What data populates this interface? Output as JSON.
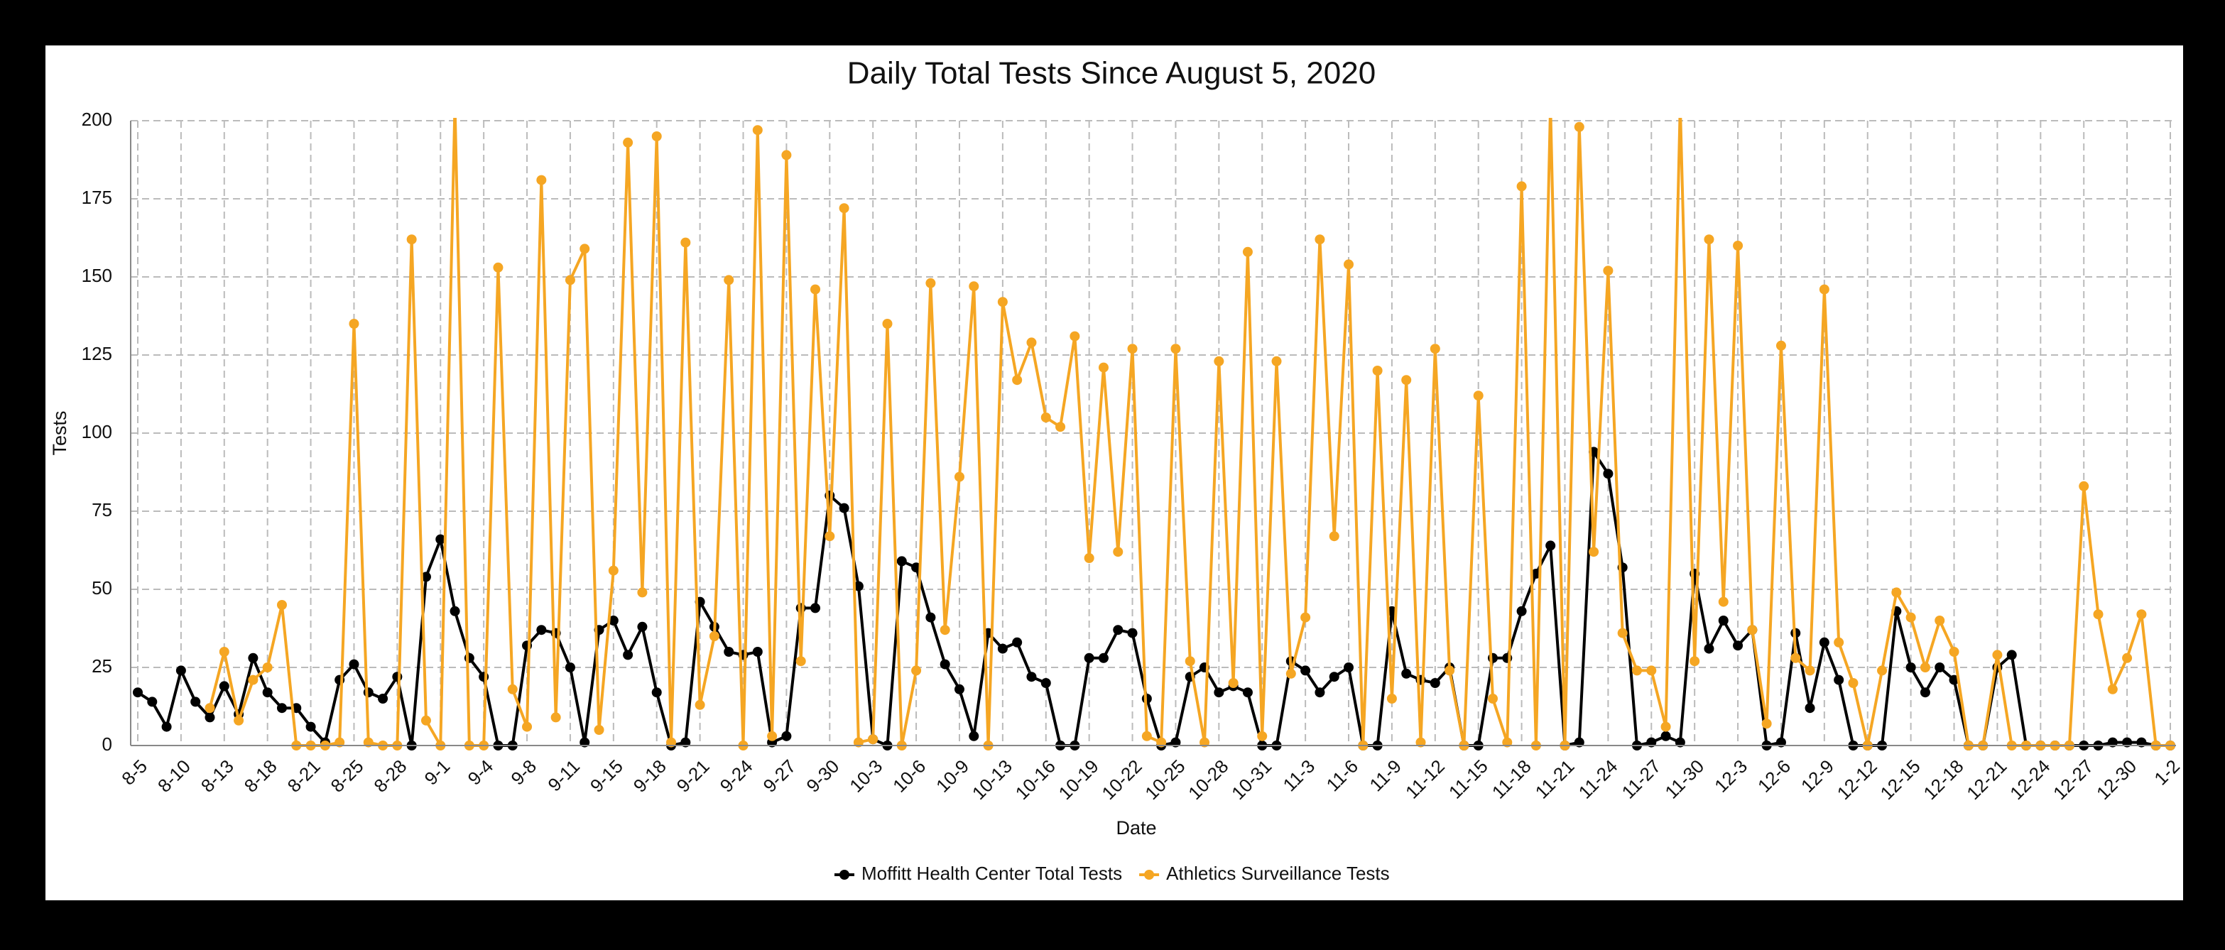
{
  "chart_data": {
    "type": "line",
    "title": "Daily Total Tests Since August 5, 2020",
    "x_label": "Date",
    "y_label": "Tests",
    "categories": [
      "8-5",
      null,
      null,
      "8-10",
      null,
      null,
      "8-13",
      null,
      null,
      "8-18",
      null,
      null,
      "8-21",
      null,
      null,
      "8-25",
      null,
      null,
      "8-28",
      null,
      null,
      "9-1",
      null,
      null,
      "9-4",
      null,
      null,
      "9-8",
      null,
      null,
      "9-11",
      null,
      null,
      "9-15",
      null,
      null,
      "9-18",
      null,
      null,
      "9-21",
      null,
      null,
      "9-24",
      null,
      null,
      "9-27",
      null,
      null,
      "9-30",
      null,
      null,
      "10-3",
      null,
      null,
      "10-6",
      null,
      null,
      "10-9",
      null,
      null,
      "10-13",
      null,
      null,
      "10-16",
      null,
      null,
      "10-19",
      null,
      null,
      "10-22",
      null,
      null,
      "10-25",
      null,
      null,
      "10-28",
      null,
      null,
      "10-31",
      null,
      null,
      "11-3",
      null,
      null,
      "11-6",
      null,
      null,
      "11-9",
      null,
      null,
      "11-12",
      null,
      null,
      "11-15",
      null,
      null,
      "11-18",
      null,
      null,
      "11-21",
      null,
      null,
      "11-24",
      null,
      null,
      "11-27",
      null,
      null,
      "11-30",
      null,
      null,
      "12-3",
      null,
      null,
      "12-6",
      null,
      null,
      "12-9",
      null,
      null,
      "12-12",
      null,
      null,
      "12-15",
      null,
      null,
      "12-18",
      null,
      null,
      "12-21",
      null,
      null,
      "12-24",
      null,
      null,
      "12-27",
      null,
      null,
      "12-30",
      null,
      null,
      "1-2"
    ],
    "series": [
      {
        "name": "Moffitt Health Center Total Tests",
        "color": "#000000",
        "values": [
          17,
          14,
          6,
          24,
          14,
          9,
          19,
          10,
          28,
          17,
          12,
          12,
          6,
          1,
          21,
          26,
          17,
          15,
          22,
          0,
          54,
          66,
          43,
          28,
          22,
          0,
          0,
          32,
          37,
          36,
          25,
          1,
          37,
          40,
          29,
          38,
          17,
          0,
          1,
          46,
          38,
          30,
          29,
          30,
          1,
          3,
          44,
          44,
          80,
          76,
          51,
          2,
          0,
          59,
          57,
          41,
          26,
          18,
          3,
          36,
          31,
          33,
          22,
          20,
          0,
          0,
          28,
          28,
          37,
          36,
          15,
          0,
          1,
          22,
          25,
          17,
          19,
          17,
          0,
          0,
          27,
          24,
          17,
          22,
          25,
          0,
          0,
          43,
          23,
          21,
          20,
          25,
          0,
          0,
          28,
          28,
          43,
          55,
          64,
          0,
          1,
          94,
          87,
          57,
          0,
          1,
          3,
          1,
          55,
          31,
          40,
          32,
          37,
          0,
          1,
          36,
          12,
          33,
          21,
          0,
          0,
          0,
          43,
          25,
          17,
          25,
          21,
          0,
          0,
          25,
          29,
          0,
          0,
          0,
          0,
          0,
          0,
          1,
          1,
          1,
          0,
          0
        ]
      },
      {
        "name": "Athletics Surveillance Tests",
        "color": "#f5a623",
        "values": [
          null,
          null,
          null,
          null,
          null,
          12,
          30,
          8,
          21,
          25,
          45,
          0,
          0,
          0,
          1,
          135,
          1,
          0,
          0,
          162,
          8,
          0,
          205,
          0,
          0,
          153,
          18,
          6,
          181,
          9,
          149,
          159,
          5,
          56,
          193,
          49,
          195,
          1,
          161,
          13,
          35,
          149,
          0,
          197,
          3,
          189,
          27,
          146,
          67,
          172,
          1,
          2,
          135,
          0,
          24,
          148,
          37,
          86,
          147,
          0,
          142,
          117,
          129,
          105,
          102,
          131,
          60,
          121,
          62,
          127,
          3,
          1,
          127,
          27,
          1,
          123,
          20,
          158,
          3,
          123,
          23,
          41,
          162,
          67,
          154,
          0,
          120,
          15,
          117,
          1,
          127,
          24,
          0,
          112,
          15,
          1,
          179,
          0,
          205,
          0,
          198,
          62,
          152,
          36,
          24,
          24,
          6,
          205,
          27,
          162,
          46,
          160,
          37,
          7,
          128,
          28,
          24,
          146,
          33,
          20,
          0,
          24,
          49,
          41,
          25,
          40,
          30,
          0,
          0,
          29,
          0,
          0,
          0,
          0,
          0,
          83,
          42,
          18,
          28,
          42,
          0,
          0
        ]
      }
    ],
    "ylim": [
      0,
      200
    ],
    "yticks": [
      0,
      25,
      50,
      75,
      100,
      125,
      150,
      175,
      200
    ],
    "grid": true,
    "legend": "bottom"
  }
}
